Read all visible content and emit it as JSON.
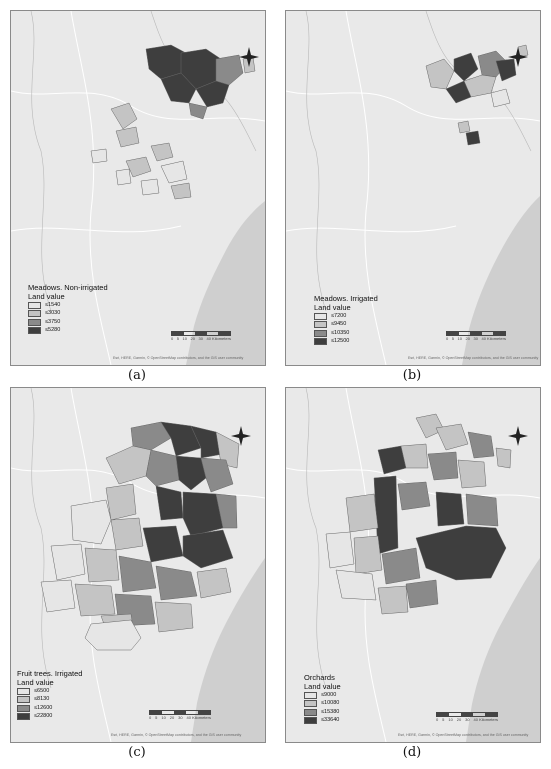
{
  "panels": [
    {
      "id": "a",
      "caption": "(a)",
      "legend": {
        "title_line1": "Meadows. Non-irrigated",
        "title_line2": "Land value",
        "classes": [
          {
            "label": "≤1540",
            "color": "#e6e6e6"
          },
          {
            "label": "≤3030",
            "color": "#c4c4c4"
          },
          {
            "label": "≤3750",
            "color": "#8a8a8a"
          },
          {
            "label": "≤5280",
            "color": "#3e3e3e"
          }
        ]
      },
      "scale_labels": [
        "0",
        "5",
        "10",
        "20",
        "30",
        "40 Kilometers"
      ],
      "attribution": "Esri, HERE, Garmin, © OpenStreetMap contributors, and the GIS user community"
    },
    {
      "id": "b",
      "caption": "(b)",
      "legend": {
        "title_line1": "Meadows. Irrigated",
        "title_line2": "Land value",
        "classes": [
          {
            "label": "≤7200",
            "color": "#e6e6e6"
          },
          {
            "label": "≤9450",
            "color": "#c4c4c4"
          },
          {
            "label": "≤10350",
            "color": "#8a8a8a"
          },
          {
            "label": "≤12500",
            "color": "#3e3e3e"
          }
        ]
      },
      "scale_labels": [
        "0",
        "5",
        "10",
        "20",
        "30",
        "40 Kilometers"
      ],
      "attribution": "Esri, HERE, Garmin, © OpenStreetMap contributors, and the GIS user community"
    },
    {
      "id": "c",
      "caption": "(c)",
      "legend": {
        "title_line1": "Fruit trees. Irrigated",
        "title_line2": "Land value",
        "classes": [
          {
            "label": "≤6500",
            "color": "#e6e6e6"
          },
          {
            "label": "≤8130",
            "color": "#c4c4c4"
          },
          {
            "label": "≤12600",
            "color": "#8a8a8a"
          },
          {
            "label": "≤22800",
            "color": "#3e3e3e"
          }
        ]
      },
      "scale_labels": [
        "0",
        "5",
        "10",
        "20",
        "30",
        "40 Kilometers"
      ],
      "attribution": "Esri, HERE, Garmin, © OpenStreetMap contributors, and the GIS user community"
    },
    {
      "id": "d",
      "caption": "(d)",
      "legend": {
        "title_line1": "Orchards",
        "title_line2": "Land value",
        "classes": [
          {
            "label": "≤9000",
            "color": "#e6e6e6"
          },
          {
            "label": "≤10080",
            "color": "#c4c4c4"
          },
          {
            "label": "≤15380",
            "color": "#8a8a8a"
          },
          {
            "label": "≤33640",
            "color": "#3e3e3e"
          }
        ]
      },
      "scale_labels": [
        "0",
        "5",
        "10",
        "20",
        "30",
        "40 Kilometers"
      ],
      "attribution": "Esri, HERE, Garmin, © OpenStreetMap contributors, and the GIS user community"
    }
  ],
  "colors": {
    "land": "#e9e9e9",
    "sea": "#cfcfcf",
    "roads": "#ffffff",
    "borders": "#b8b8b8"
  },
  "north_arrow_icon": "compass-north-icon"
}
